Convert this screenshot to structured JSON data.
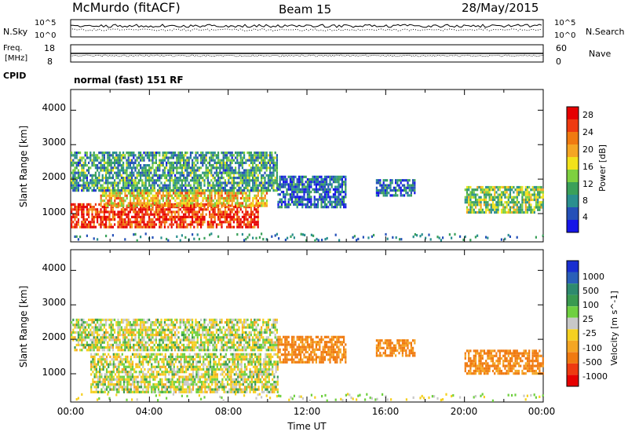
{
  "header": {
    "station": "McMurdo (fitACF)",
    "beam": "Beam 15",
    "date": "28/May/2015"
  },
  "params": {
    "nsky_label": "N.Sky",
    "nsearch_label": "N.Search",
    "freq_label_1": "Freq.",
    "freq_label_2": "[MHz]",
    "nave_label": "Nave",
    "cpid_label": "CPID",
    "cpid_value": "normal (fast) 151 RF",
    "noise_ticks_left": [
      "10^5",
      "10^0"
    ],
    "noise_ticks_right": [
      "10^5",
      "10^0"
    ],
    "freq_ticks_left": [
      "18",
      "8"
    ],
    "nave_ticks_right": [
      "60",
      "0"
    ]
  },
  "axes": {
    "ylabel": "Slant Range [km]",
    "yticks": [
      "4000",
      "3000",
      "2000",
      "1000"
    ],
    "xlabel": "Time UT",
    "xticks": [
      "00:00",
      "04:00",
      "08:00",
      "12:00",
      "16:00",
      "20:00",
      "00:00"
    ]
  },
  "power_colorbar": {
    "label": "Power [dB]",
    "ticks": [
      "28",
      "24",
      "20",
      "16",
      "12",
      "8",
      "4"
    ],
    "colors": [
      "#1515e8",
      "#2450b8",
      "#2a8f8f",
      "#3aa05a",
      "#7ed040",
      "#f2e21b",
      "#f5a623",
      "#f07a10",
      "#ee3a10",
      "#e60000"
    ]
  },
  "velocity_colorbar": {
    "label": "Velocity [m s^-1]",
    "ticks": [
      "1000",
      "500",
      "100",
      "25",
      "-25",
      "-100",
      "-500",
      "-1000"
    ],
    "colors": [
      "#1a2ed0",
      "#2a5fb8",
      "#2e8a6e",
      "#3a9a50",
      "#6fd040",
      "#c8c8c8",
      "#f5d020",
      "#f5a623",
      "#f07a10",
      "#ee3a10",
      "#e60000"
    ]
  },
  "chart_data": {
    "type": "heatmap",
    "title": "McMurdo (fitACF) Beam 15 28/May/2015",
    "x_range": [
      "00:00",
      "24:00"
    ],
    "y_range_km": [
      180,
      4600
    ],
    "panels": [
      {
        "name": "Power",
        "units": "dB",
        "regions": [
          {
            "t_start": 0.0,
            "t_end": 9.5,
            "range_km": [
              600,
              1300
            ],
            "value": 28
          },
          {
            "t_start": 1.5,
            "t_end": 10.0,
            "range_km": [
              1200,
              1700
            ],
            "value": 20
          },
          {
            "t_start": 0.0,
            "t_end": 10.5,
            "range_km": [
              1700,
              2800
            ],
            "value": 10
          },
          {
            "t_start": 10.5,
            "t_end": 14.0,
            "range_km": [
              1200,
              2100
            ],
            "value": 6
          },
          {
            "t_start": 15.5,
            "t_end": 17.5,
            "range_km": [
              1500,
              2000
            ],
            "value": 6
          },
          {
            "t_start": 20.0,
            "t_end": 24.0,
            "range_km": [
              1000,
              1800
            ],
            "value": 14
          }
        ]
      },
      {
        "name": "Velocity",
        "units": "m s^-1",
        "regions": [
          {
            "t_start": 1.0,
            "t_end": 10.5,
            "range_km": [
              500,
              1600
            ],
            "value": 0
          },
          {
            "t_start": 0.0,
            "t_end": 10.5,
            "range_km": [
              1700,
              2600
            ],
            "value": 0
          },
          {
            "t_start": 10.5,
            "t_end": 14.0,
            "range_km": [
              1300,
              2100
            ],
            "value": -300
          },
          {
            "t_start": 15.5,
            "t_end": 17.5,
            "range_km": [
              1500,
              2000
            ],
            "value": -300
          },
          {
            "t_start": 20.0,
            "t_end": 24.0,
            "range_km": [
              1000,
              1700
            ],
            "value": -300
          }
        ]
      }
    ]
  }
}
